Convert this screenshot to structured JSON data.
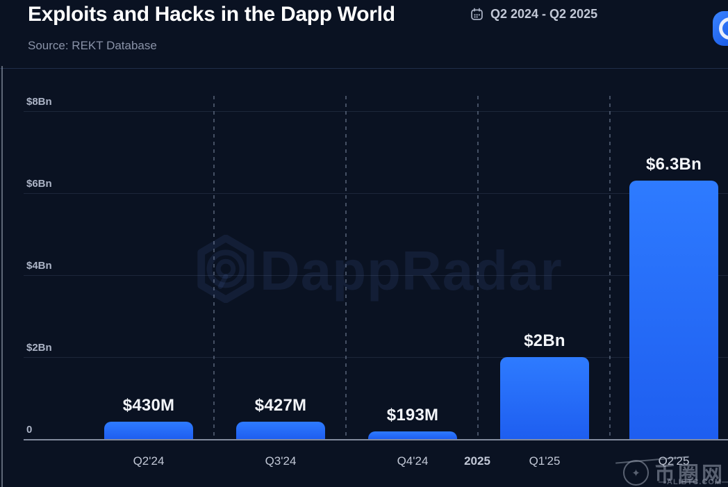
{
  "header": {
    "title": "Exploits and Hacks in the Dapp World",
    "subtitle": "Source: REKT Database",
    "date_range": "Q2 2024 - Q2 2025"
  },
  "colors": {
    "background": "#0A1222",
    "bar_top": "#2E7BFF",
    "bar_bottom": "#1E5EF0",
    "text_primary": "#FFFFFF",
    "text_secondary": "#8A93A8",
    "axis_label": "#ACB4C6",
    "tick_label": "#C2C8D6",
    "logo_blue": "#1A66F6"
  },
  "chart_data": {
    "type": "bar",
    "title": "Exploits and Hacks in the Dapp World",
    "source": "Source: REKT Database",
    "period": "Q2 2024 - Q2 2025",
    "categories": [
      "Q2'24",
      "Q3'24",
      "Q4'24",
      "Q1'25",
      "Q2'25"
    ],
    "values_usd_bn": [
      0.43,
      0.427,
      0.193,
      2.0,
      6.3
    ],
    "bar_labels": [
      "$430M",
      "$427M",
      "$193M",
      "$2Bn",
      "$6.3Bn"
    ],
    "year_marker": {
      "label": "2025",
      "between_index": 3
    },
    "y_ticks": [
      {
        "value": 8,
        "label": "$8Bn"
      },
      {
        "value": 6,
        "label": "$6Bn"
      },
      {
        "value": 4,
        "label": "$4Bn"
      },
      {
        "value": 2,
        "label": "$2Bn"
      },
      {
        "value": 0,
        "label": "0"
      }
    ],
    "ylim": [
      0,
      8
    ],
    "xlabel": "",
    "ylabel": "",
    "grid": {
      "horizontal": "solid",
      "vertical": "dashed"
    },
    "legend": "none"
  },
  "watermarks": {
    "center_text": "DappRadar",
    "corner_icon": "star-swirl-icon",
    "corner_star": "✦",
    "corner_site": "币圈网",
    "corner_domain": "—ALIBTC.COM—"
  }
}
